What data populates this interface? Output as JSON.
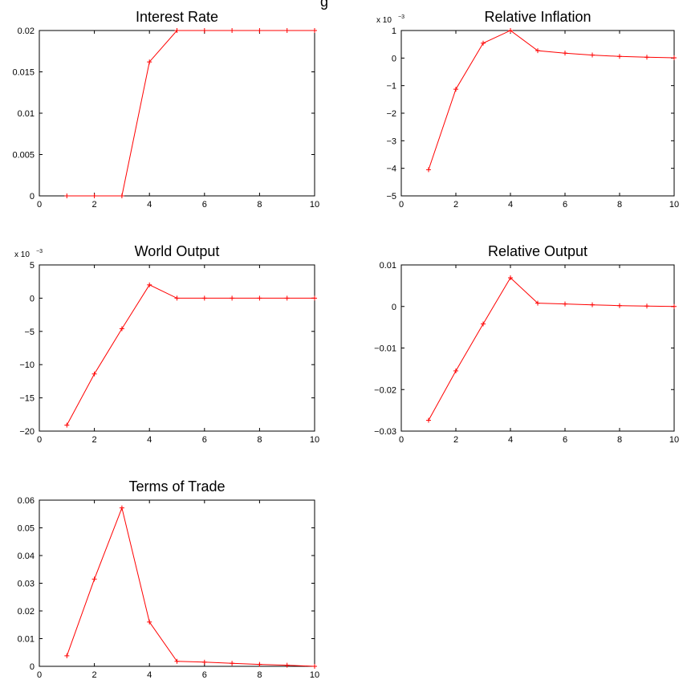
{
  "figure": {
    "partial_title": "g",
    "line_color": "#ff0000"
  },
  "chart_data": [
    {
      "type": "line",
      "title": "Interest Rate",
      "multiplier": "",
      "x": [
        1,
        2,
        3,
        4,
        5,
        6,
        7,
        8,
        9,
        10
      ],
      "values": [
        0,
        0,
        0,
        0.0162,
        0.02,
        0.02,
        0.02,
        0.02,
        0.02,
        0.02
      ],
      "xlim": [
        0,
        10
      ],
      "ylim": [
        0,
        0.02
      ],
      "xticks": [
        "0",
        "2",
        "4",
        "6",
        "8",
        "10"
      ],
      "yticks": [
        "0",
        "0.005",
        "0.01",
        "0.015",
        "0.02"
      ],
      "grid": false
    },
    {
      "type": "line",
      "title": "Relative Inflation",
      "multiplier": "x 10",
      "multiplier_exp": "−3",
      "x": [
        1,
        2,
        3,
        4,
        5,
        6,
        7,
        8,
        9,
        10
      ],
      "values": [
        -0.00405,
        -0.00113,
        0.00054,
        0.001,
        0.00027,
        0.00018,
        0.00011,
        6e-05,
        3e-05,
        1e-05
      ],
      "xlim": [
        0,
        10
      ],
      "ylim": [
        -0.005,
        0.001
      ],
      "xticks": [
        "0",
        "2",
        "4",
        "6",
        "8",
        "10"
      ],
      "yticks": [
        "−5",
        "−4",
        "−3",
        "−2",
        "−1",
        "0",
        "1"
      ],
      "grid": false
    },
    {
      "type": "line",
      "title": "World Output",
      "multiplier": "x 10",
      "multiplier_exp": "−3",
      "x": [
        1,
        2,
        3,
        4,
        5,
        6,
        7,
        8,
        9,
        10
      ],
      "values": [
        -0.0191,
        -0.0114,
        -0.0046,
        0.002,
        0,
        0,
        0,
        0,
        0,
        0
      ],
      "xlim": [
        0,
        10
      ],
      "ylim": [
        -0.02,
        0.005
      ],
      "xticks": [
        "0",
        "2",
        "4",
        "6",
        "8",
        "10"
      ],
      "yticks": [
        "−20",
        "−15",
        "−10",
        "−5",
        "0",
        "5"
      ],
      "grid": false
    },
    {
      "type": "line",
      "title": "Relative Output",
      "multiplier": "",
      "x": [
        1,
        2,
        3,
        4,
        5,
        6,
        7,
        8,
        9,
        10
      ],
      "values": [
        -0.0274,
        -0.0155,
        -0.0042,
        0.0069,
        0.0008,
        0.0006,
        0.0004,
        0.0002,
        0.0001,
        0
      ],
      "xlim": [
        0,
        10
      ],
      "ylim": [
        -0.03,
        0.01
      ],
      "xticks": [
        "0",
        "2",
        "4",
        "6",
        "8",
        "10"
      ],
      "yticks": [
        "−0.03",
        "−0.02",
        "−0.01",
        "0",
        "0.01"
      ],
      "grid": false
    },
    {
      "type": "line",
      "title": "Terms of Trade",
      "multiplier": "",
      "x": [
        1,
        2,
        3,
        4,
        5,
        6,
        7,
        8,
        9,
        10
      ],
      "values": [
        0.0038,
        0.0315,
        0.0572,
        0.016,
        0.0018,
        0.0015,
        0.0011,
        0.0007,
        0.0004,
        0
      ],
      "xlim": [
        0,
        10
      ],
      "ylim": [
        0,
        0.06
      ],
      "xticks": [
        "0",
        "2",
        "4",
        "6",
        "8",
        "10"
      ],
      "yticks": [
        "0",
        "0.01",
        "0.02",
        "0.03",
        "0.04",
        "0.05",
        "0.06"
      ],
      "grid": false
    }
  ]
}
